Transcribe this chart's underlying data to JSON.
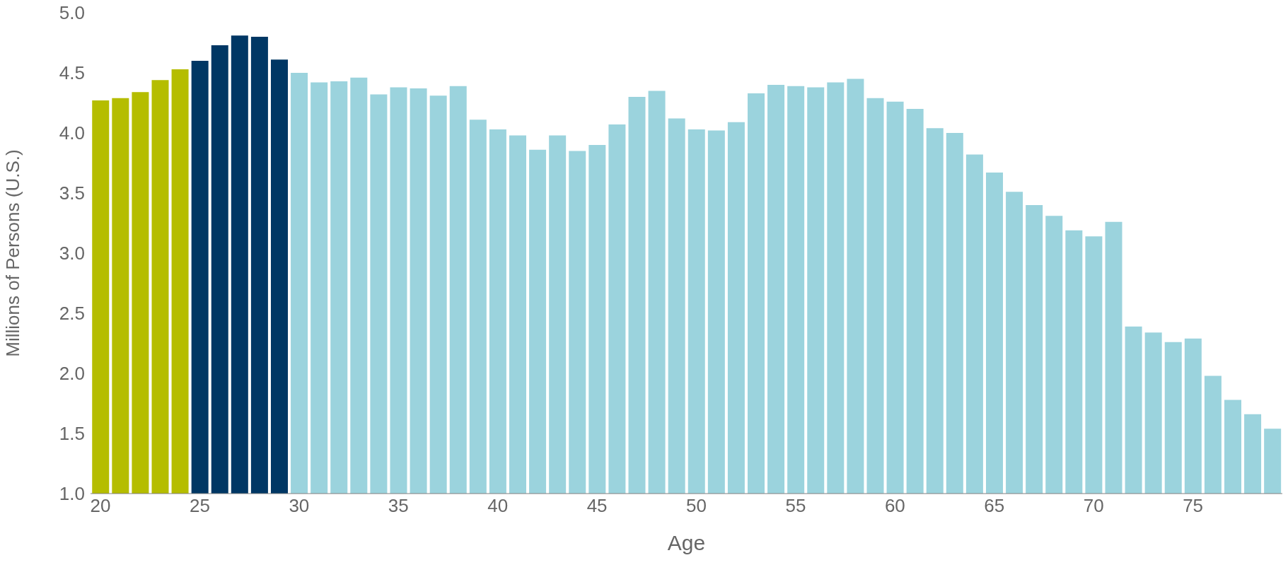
{
  "chart_data": {
    "type": "bar",
    "xlabel": "Age",
    "ylabel": "Millions of Persons (U.S.)",
    "categories": [
      "20",
      null,
      null,
      null,
      null,
      "25",
      null,
      null,
      null,
      null,
      "30",
      null,
      null,
      null,
      null,
      "35",
      null,
      null,
      null,
      null,
      "40",
      null,
      null,
      null,
      null,
      "45",
      null,
      null,
      null,
      null,
      "50",
      null,
      null,
      null,
      null,
      "55",
      null,
      null,
      null,
      null,
      "60",
      null,
      null,
      null,
      null,
      "65",
      null,
      null,
      null,
      null,
      "70",
      null,
      null,
      null,
      null,
      "75",
      null,
      null,
      null,
      null
    ],
    "values": [
      4.27,
      4.29,
      4.34,
      4.44,
      4.53,
      4.6,
      4.73,
      4.81,
      4.8,
      4.61,
      4.5,
      4.42,
      4.43,
      4.46,
      4.32,
      4.38,
      4.37,
      4.31,
      4.39,
      4.11,
      4.03,
      3.98,
      3.86,
      3.98,
      3.85,
      3.9,
      4.07,
      4.3,
      4.35,
      4.12,
      4.03,
      4.02,
      4.09,
      4.33,
      4.4,
      4.39,
      4.38,
      4.42,
      4.45,
      4.29,
      4.26,
      4.2,
      4.04,
      4.0,
      3.82,
      3.67,
      3.51,
      3.4,
      3.31,
      3.19,
      3.14,
      3.26,
      2.39,
      2.34,
      2.26,
      2.29,
      1.98,
      1.78,
      1.66,
      1.54
    ],
    "colors": [
      "#b5bd00",
      "#b5bd00",
      "#b5bd00",
      "#b5bd00",
      "#b5bd00",
      "#003764",
      "#003764",
      "#003764",
      "#003764",
      "#003764",
      "#9bd3dd",
      "#9bd3dd",
      "#9bd3dd",
      "#9bd3dd",
      "#9bd3dd",
      "#9bd3dd",
      "#9bd3dd",
      "#9bd3dd",
      "#9bd3dd",
      "#9bd3dd",
      "#9bd3dd",
      "#9bd3dd",
      "#9bd3dd",
      "#9bd3dd",
      "#9bd3dd",
      "#9bd3dd",
      "#9bd3dd",
      "#9bd3dd",
      "#9bd3dd",
      "#9bd3dd",
      "#9bd3dd",
      "#9bd3dd",
      "#9bd3dd",
      "#9bd3dd",
      "#9bd3dd",
      "#9bd3dd",
      "#9bd3dd",
      "#9bd3dd",
      "#9bd3dd",
      "#9bd3dd",
      "#9bd3dd",
      "#9bd3dd",
      "#9bd3dd",
      "#9bd3dd",
      "#9bd3dd",
      "#9bd3dd",
      "#9bd3dd",
      "#9bd3dd",
      "#9bd3dd",
      "#9bd3dd",
      "#9bd3dd",
      "#9bd3dd",
      "#9bd3dd",
      "#9bd3dd",
      "#9bd3dd",
      "#9bd3dd",
      "#9bd3dd",
      "#9bd3dd",
      "#9bd3dd",
      "#9bd3dd"
    ],
    "ylim": [
      1.0,
      5.0
    ],
    "yticks": [
      {
        "value": 1,
        "label": "1.0"
      },
      {
        "value": 1.5,
        "label": "1.5"
      },
      {
        "value": 2,
        "label": "2.0"
      },
      {
        "value": 2.5,
        "label": "2.5"
      },
      {
        "value": 3,
        "label": "3.0"
      },
      {
        "value": 3.5,
        "label": "3.5"
      },
      {
        "value": 4,
        "label": "4.0"
      },
      {
        "value": 4.5,
        "label": "4.5"
      },
      {
        "value": 5,
        "label": "5.0"
      }
    ],
    "grid": false,
    "legend": false
  }
}
